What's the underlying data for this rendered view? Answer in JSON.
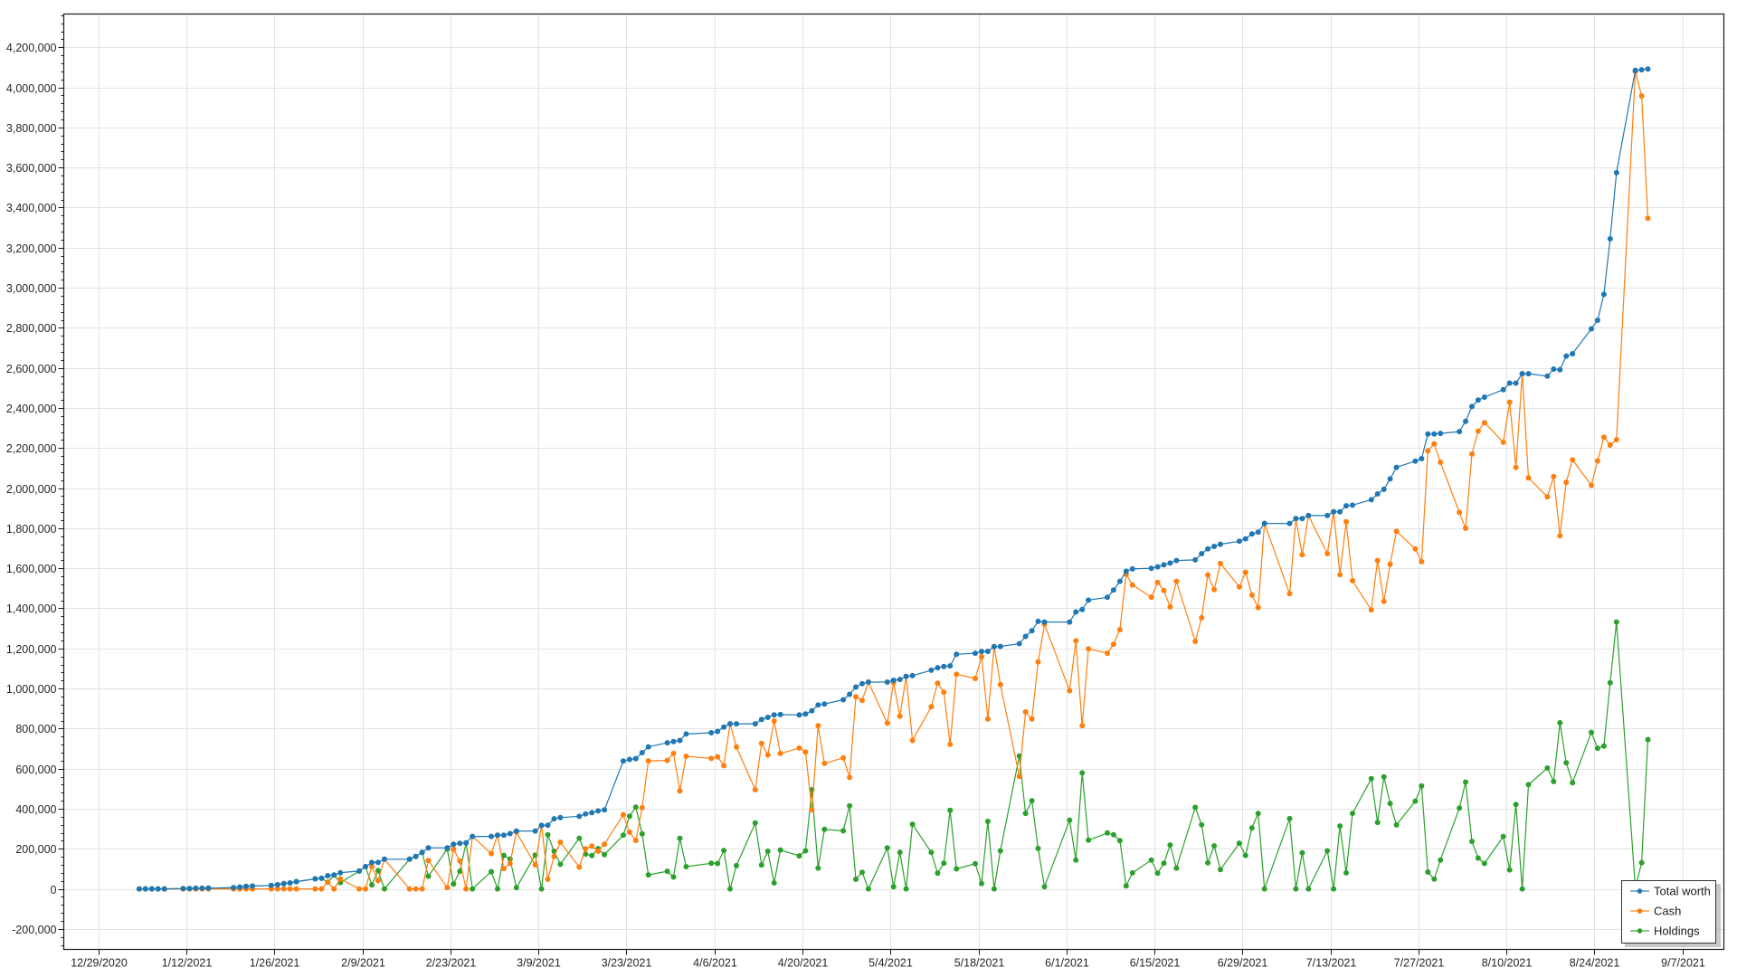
{
  "chart_data": {
    "type": "line",
    "title": "",
    "xlabel": "",
    "ylabel": "",
    "xlim": [
      "2020-12-23T12:00:00Z",
      "2021-09-13T14:00:00Z"
    ],
    "ylim": [
      -302000,
      4366000
    ],
    "grid": true,
    "legend_position": "bottom-right",
    "x_ticks": [
      "12/29/2020",
      "1/12/2021",
      "1/26/2021",
      "2/9/2021",
      "2/23/2021",
      "3/9/2021",
      "3/23/2021",
      "4/6/2021",
      "4/20/2021",
      "5/4/2021",
      "5/18/2021",
      "6/1/2021",
      "6/15/2021",
      "6/29/2021",
      "7/13/2021",
      "7/27/2021",
      "8/10/2021",
      "8/24/2021",
      "9/7/2021"
    ],
    "y_ticks": [
      "-200,000",
      "0",
      "200,000",
      "400,000",
      "600,000",
      "800,000",
      "1,000,000",
      "1,200,000",
      "1,400,000",
      "1,600,000",
      "1,800,000",
      "2,000,000",
      "2,200,000",
      "2,400,000",
      "2,600,000",
      "2,800,000",
      "3,000,000",
      "3,200,000",
      "3,400,000",
      "3,600,000",
      "3,800,000",
      "4,000,000",
      "4,200,000"
    ],
    "x": [
      "2021-01-04",
      "2021-01-05",
      "2021-01-06",
      "2021-01-07",
      "2021-01-08",
      "2021-01-11",
      "2021-01-12",
      "2021-01-13",
      "2021-01-14",
      "2021-01-15",
      "2021-01-19",
      "2021-01-20",
      "2021-01-21",
      "2021-01-22",
      "2021-01-25",
      "2021-01-26",
      "2021-01-27",
      "2021-01-28",
      "2021-01-29",
      "2021-02-01",
      "2021-02-02",
      "2021-02-03",
      "2021-02-04",
      "2021-02-05",
      "2021-02-08",
      "2021-02-09",
      "2021-02-10",
      "2021-02-11",
      "2021-02-12",
      "2021-02-16",
      "2021-02-17",
      "2021-02-18",
      "2021-02-19",
      "2021-02-22",
      "2021-02-23",
      "2021-02-24",
      "2021-02-25",
      "2021-02-26",
      "2021-03-01",
      "2021-03-02",
      "2021-03-03",
      "2021-03-04",
      "2021-03-05",
      "2021-03-08",
      "2021-03-09",
      "2021-03-10",
      "2021-03-11",
      "2021-03-12",
      "2021-03-15",
      "2021-03-16",
      "2021-03-17",
      "2021-03-18",
      "2021-03-19",
      "2021-03-22",
      "2021-03-23",
      "2021-03-24",
      "2021-03-25",
      "2021-03-26",
      "2021-03-29",
      "2021-03-30",
      "2021-03-31",
      "2021-04-01",
      "2021-04-05",
      "2021-04-06",
      "2021-04-07",
      "2021-04-08",
      "2021-04-09",
      "2021-04-12",
      "2021-04-13",
      "2021-04-14",
      "2021-04-15",
      "2021-04-16",
      "2021-04-19",
      "2021-04-20",
      "2021-04-21",
      "2021-04-22",
      "2021-04-23",
      "2021-04-26",
      "2021-04-27",
      "2021-04-28",
      "2021-04-29",
      "2021-04-30",
      "2021-05-03",
      "2021-05-04",
      "2021-05-05",
      "2021-05-06",
      "2021-05-07",
      "2021-05-10",
      "2021-05-11",
      "2021-05-12",
      "2021-05-13",
      "2021-05-14",
      "2021-05-17",
      "2021-05-18",
      "2021-05-19",
      "2021-05-20",
      "2021-05-21",
      "2021-05-24",
      "2021-05-25",
      "2021-05-26",
      "2021-05-27",
      "2021-05-28",
      "2021-06-01",
      "2021-06-02",
      "2021-06-03",
      "2021-06-04",
      "2021-06-07",
      "2021-06-08",
      "2021-06-09",
      "2021-06-10",
      "2021-06-11",
      "2021-06-14",
      "2021-06-15",
      "2021-06-16",
      "2021-06-17",
      "2021-06-18",
      "2021-06-21",
      "2021-06-22",
      "2021-06-23",
      "2021-06-24",
      "2021-06-25",
      "2021-06-28",
      "2021-06-29",
      "2021-06-30",
      "2021-07-01",
      "2021-07-02",
      "2021-07-06",
      "2021-07-07",
      "2021-07-08",
      "2021-07-09",
      "2021-07-12",
      "2021-07-13",
      "2021-07-14",
      "2021-07-15",
      "2021-07-16",
      "2021-07-19",
      "2021-07-20",
      "2021-07-21",
      "2021-07-22",
      "2021-07-23",
      "2021-07-26",
      "2021-07-27",
      "2021-07-28",
      "2021-07-29",
      "2021-07-30",
      "2021-08-02",
      "2021-08-03",
      "2021-08-04",
      "2021-08-05",
      "2021-08-06",
      "2021-08-09",
      "2021-08-10",
      "2021-08-11",
      "2021-08-12",
      "2021-08-13",
      "2021-08-16",
      "2021-08-17",
      "2021-08-18",
      "2021-08-19",
      "2021-08-20",
      "2021-08-23",
      "2021-08-24",
      "2021-08-25",
      "2021-08-26",
      "2021-08-27",
      "2021-08-30",
      "2021-08-31",
      "2021-09-01"
    ],
    "series": [
      {
        "name": "Total worth",
        "color": "#1f77b4",
        "values": [
          0,
          0,
          0,
          0,
          0,
          2000,
          2000,
          3000,
          3000,
          4000,
          6000,
          9000,
          12000,
          14000,
          17000,
          21000,
          26000,
          30000,
          36000,
          50000,
          53000,
          66000,
          69000,
          81000,
          89000,
          111000,
          132000,
          132000,
          148000,
          148000,
          162000,
          182000,
          205000,
          205000,
          223000,
          227000,
          230000,
          262000,
          262000,
          268000,
          268000,
          276000,
          289000,
          289000,
          317000,
          318000,
          350000,
          356000,
          362000,
          374000,
          380000,
          389000,
          394000,
          638000,
          646000,
          650000,
          680000,
          709000,
          729000,
          735000,
          741000,
          773000,
          779000,
          786000,
          807000,
          824000,
          824000,
          824000,
          845000,
          856000,
          868000,
          870000,
          868000,
          873000,
          889000,
          918000,
          923000,
          944000,
          971000,
          1007000,
          1024000,
          1032000,
          1032000,
          1041000,
          1045000,
          1060000,
          1064000,
          1091000,
          1104000,
          1110000,
          1113000,
          1171000,
          1176000,
          1185000,
          1185000,
          1209000,
          1210000,
          1224000,
          1260000,
          1288000,
          1335000,
          1332000,
          1332000,
          1382000,
          1394000,
          1441000,
          1455000,
          1491000,
          1535000,
          1585000,
          1597000,
          1600000,
          1607000,
          1617000,
          1626000,
          1639000,
          1642000,
          1673000,
          1697000,
          1709000,
          1720000,
          1735000,
          1747000,
          1771000,
          1780000,
          1824000,
          1824000,
          1848000,
          1848000,
          1863000,
          1863000,
          1882000,
          1882000,
          1912000,
          1915000,
          1942000,
          1971000,
          1994000,
          2046000,
          2104000,
          2135000,
          2147000,
          2270000,
          2270000,
          2273000,
          2282000,
          2333000,
          2407000,
          2439000,
          2454000,
          2491000,
          2524000,
          2524000,
          2571000,
          2571000,
          2559000,
          2594000,
          2591000,
          2659000,
          2671000,
          2795000,
          2838000,
          2967000,
          3244000,
          3574000,
          4085000,
          4088000,
          4092000
        ]
      },
      {
        "name": "Cash",
        "color": "#ff7f0e",
        "values": [
          0,
          0,
          0,
          0,
          0,
          0,
          0,
          0,
          0,
          0,
          0,
          0,
          0,
          0,
          0,
          0,
          0,
          0,
          0,
          0,
          0,
          33000,
          0,
          50000,
          0,
          0,
          112000,
          41000,
          148000,
          0,
          0,
          0,
          142000,
          6000,
          198000,
          139000,
          0,
          262000,
          176000,
          268000,
          101000,
          127000,
          283000,
          120000,
          317000,
          48000,
          162000,
          233000,
          109000,
          200000,
          214000,
          188000,
          223000,
          370000,
          283000,
          242000,
          405000,
          639000,
          641000,
          676000,
          489000,
          662000,
          651000,
          659000,
          615000,
          824000,
          708000,
          495000,
          726000,
          668000,
          838000,
          676000,
          703000,
          683000,
          394000,
          814000,
          626000,
          654000,
          556000,
          959000,
          941000,
          1032000,
          827000,
          1030000,
          862000,
          1060000,
          741000,
          909000,
          1026000,
          982000,
          721000,
          1071000,
          1050000,
          1159000,
          848000,
          1209000,
          1020000,
          561000,
          883000,
          848000,
          1133000,
          1321000,
          989000,
          1238000,
          815000,
          1198000,
          1176000,
          1221000,
          1294000,
          1570000,
          1517000,
          1456000,
          1529000,
          1489000,
          1407000,
          1535000,
          1235000,
          1353000,
          1567000,
          1494000,
          1624000,
          1507000,
          1580000,
          1467000,
          1404000,
          1824000,
          1473000,
          1848000,
          1668000,
          1863000,
          1673000,
          1882000,
          1568000,
          1832000,
          1538000,
          1392000,
          1639000,
          1435000,
          1620000,
          1785000,
          1697000,
          1633000,
          2186000,
          2221000,
          2129000,
          1879000,
          1800000,
          2170000,
          2285000,
          2327000,
          2229000,
          2429000,
          2103000,
          2571000,
          2051000,
          1956000,
          2058000,
          1762000,
          2029000,
          2141000,
          2014000,
          2136000,
          2254000,
          2215000,
          2242000,
          4079000,
          3957000,
          3347000
        ]
      },
      {
        "name": "Holdings",
        "color": "#2ca02c",
        "values": [
          0,
          0,
          0,
          0,
          0,
          2000,
          2000,
          3000,
          3000,
          4000,
          6000,
          9000,
          12000,
          14000,
          17000,
          21000,
          26000,
          30000,
          36000,
          50000,
          53000,
          33000,
          69000,
          31000,
          89000,
          111000,
          20000,
          91000,
          0,
          148000,
          162000,
          182000,
          63000,
          199000,
          25000,
          88000,
          230000,
          0,
          86000,
          0,
          167000,
          149000,
          6000,
          169000,
          0,
          270000,
          188000,
          123000,
          253000,
          174000,
          166000,
          201000,
          171000,
          268000,
          363000,
          408000,
          275000,
          70000,
          88000,
          59000,
          252000,
          111000,
          128000,
          127000,
          192000,
          0,
          116000,
          329000,
          119000,
          188000,
          30000,
          194000,
          165000,
          190000,
          495000,
          104000,
          297000,
          290000,
          415000,
          48000,
          83000,
          0,
          205000,
          11000,
          183000,
          0,
          323000,
          182000,
          78000,
          128000,
          392000,
          100000,
          126000,
          26000,
          337000,
          0,
          190000,
          663000,
          377000,
          440000,
          202000,
          11000,
          343000,
          144000,
          579000,
          243000,
          279000,
          270000,
          241000,
          15000,
          80000,
          144000,
          78000,
          128000,
          219000,
          104000,
          407000,
          320000,
          130000,
          215000,
          96000,
          228000,
          167000,
          304000,
          376000,
          0,
          351000,
          0,
          180000,
          0,
          190000,
          0,
          314000,
          80000,
          377000,
          550000,
          332000,
          559000,
          426000,
          319000,
          438000,
          514000,
          84000,
          49000,
          144000,
          403000,
          533000,
          237000,
          154000,
          127000,
          262000,
          95000,
          421000,
          0,
          520000,
          603000,
          536000,
          829000,
          630000,
          530000,
          781000,
          702000,
          713000,
          1029000,
          1332000,
          6000,
          131000,
          745000
        ]
      }
    ]
  }
}
